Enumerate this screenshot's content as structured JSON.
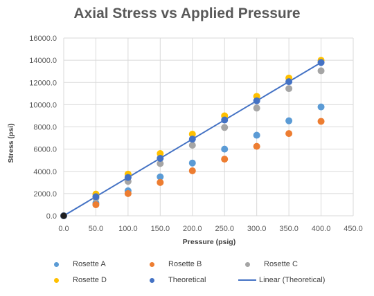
{
  "chart_data": {
    "type": "scatter",
    "title": "Axial Stress vs Applied Pressure",
    "xlabel": "Pressure (psig)",
    "ylabel": "Stress (psi)",
    "xlim": [
      0,
      450
    ],
    "ylim": [
      0,
      16000
    ],
    "x_ticks": [
      "0.0",
      "50.0",
      "100.0",
      "150.0",
      "200.0",
      "250.0",
      "300.0",
      "350.0",
      "400.0",
      "450.0"
    ],
    "y_ticks": [
      "0.0",
      "2000.0",
      "4000.0",
      "6000.0",
      "8000.0",
      "10000.0",
      "12000.0",
      "14000.0",
      "16000.0"
    ],
    "grid": true,
    "legend_position": "bottom",
    "x": [
      0,
      50,
      100,
      150,
      200,
      250,
      300,
      350,
      400
    ],
    "series": [
      {
        "name": "Rosette A",
        "color": "#5B9BD5",
        "marker": "circle",
        "values": [
          0,
          1150,
          2250,
          3500,
          4750,
          6000,
          7250,
          8550,
          9800
        ]
      },
      {
        "name": "Rosette B",
        "color": "#ED7D31",
        "marker": "circle",
        "values": [
          0,
          1000,
          2000,
          3000,
          4050,
          5100,
          6250,
          7400,
          8500
        ]
      },
      {
        "name": "Rosette C",
        "color": "#A5A5A5",
        "marker": "circle",
        "values": [
          0,
          1600,
          3100,
          4700,
          6350,
          7950,
          9700,
          11450,
          13050
        ]
      },
      {
        "name": "Rosette D",
        "color": "#FFC000",
        "marker": "circle",
        "values": [
          0,
          1950,
          3750,
          5600,
          7350,
          9000,
          10750,
          12400,
          14000
        ]
      },
      {
        "name": "Theoretical",
        "color": "#4472C4",
        "marker": "circle",
        "values": [
          0,
          1720,
          3450,
          5170,
          6900,
          8620,
          10350,
          12070,
          13800
        ]
      },
      {
        "name": "Linear (Theoretical)",
        "color": "#4472C4",
        "marker": "line",
        "values": [
          0,
          1720,
          3450,
          5170,
          6900,
          8620,
          10350,
          12070,
          13800
        ]
      }
    ]
  }
}
